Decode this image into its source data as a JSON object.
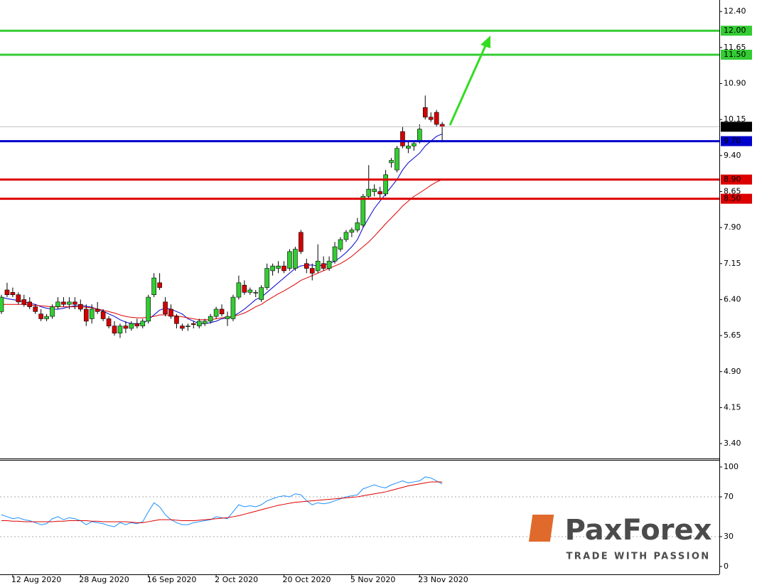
{
  "chart_data": [
    {
      "type": "candlestick",
      "categories": [
        null,
        null,
        "12 Aug 2020",
        null,
        null,
        null,
        null,
        null,
        null,
        null,
        null,
        null,
        null,
        null,
        "28 Aug 2020",
        null,
        null,
        null,
        null,
        null,
        null,
        null,
        null,
        null,
        null,
        null,
        "16 Sep 2020",
        null,
        null,
        null,
        null,
        null,
        null,
        null,
        null,
        null,
        null,
        null,
        "2 Oct 2020",
        null,
        null,
        null,
        null,
        null,
        null,
        null,
        null,
        null,
        null,
        null,
        "20 Oct 2020",
        null,
        null,
        null,
        null,
        null,
        null,
        null,
        null,
        null,
        null,
        null,
        "5 Nov 2020",
        null,
        null,
        null,
        null,
        null,
        null,
        null,
        null,
        null,
        null,
        null,
        "23 Nov 2020",
        null,
        null,
        null,
        null
      ],
      "open": [
        6.15,
        6.6,
        6.55,
        6.5,
        6.4,
        6.35,
        6.25,
        6.1,
        6.0,
        6.05,
        6.25,
        6.35,
        6.3,
        6.35,
        6.3,
        6.2,
        6.0,
        6.2,
        6.15,
        6.0,
        5.85,
        5.7,
        5.85,
        5.8,
        5.9,
        5.85,
        5.95,
        6.5,
        6.75,
        6.35,
        6.2,
        6.05,
        5.85,
        5.85,
        5.9,
        5.85,
        5.9,
        5.95,
        6.05,
        6.2,
        6.0,
        6.0,
        6.45,
        6.7,
        6.55,
        6.55,
        6.4,
        6.65,
        7.0,
        7.05,
        7.1,
        7.05,
        7.05,
        7.8,
        7.15,
        7.05,
        7.0,
        7.15,
        7.05,
        7.2,
        7.45,
        7.65,
        7.8,
        7.85,
        7.95,
        8.55,
        8.65,
        8.65,
        8.6,
        9.25,
        9.1,
        9.9,
        9.55,
        9.6,
        9.7,
        10.4,
        10.2,
        10.3,
        10.05
      ],
      "high": [
        6.5,
        6.75,
        6.65,
        6.55,
        6.5,
        6.45,
        6.3,
        6.2,
        6.1,
        6.3,
        6.45,
        6.45,
        6.45,
        6.45,
        6.4,
        6.3,
        6.3,
        6.35,
        6.2,
        6.05,
        5.95,
        5.9,
        5.95,
        5.95,
        6.0,
        6.0,
        6.5,
        6.95,
        6.95,
        6.45,
        6.3,
        6.1,
        5.9,
        5.9,
        5.95,
        6.0,
        6.0,
        6.1,
        6.25,
        6.3,
        6.15,
        6.5,
        6.9,
        6.8,
        6.65,
        6.6,
        6.7,
        7.15,
        7.15,
        7.2,
        7.2,
        7.45,
        7.5,
        7.85,
        7.25,
        7.15,
        7.55,
        7.3,
        7.3,
        7.6,
        7.7,
        7.85,
        7.9,
        8.1,
        8.6,
        9.2,
        8.8,
        8.75,
        9.1,
        9.35,
        9.6,
        10.0,
        9.7,
        9.7,
        10.05,
        10.65,
        10.3,
        10.35,
        10.1
      ],
      "low": [
        6.1,
        6.45,
        6.45,
        6.3,
        6.25,
        6.2,
        6.1,
        5.95,
        5.95,
        6.0,
        6.2,
        6.25,
        6.2,
        6.2,
        6.15,
        5.85,
        5.9,
        6.1,
        5.95,
        5.8,
        5.65,
        5.6,
        5.7,
        5.75,
        5.8,
        5.8,
        5.9,
        6.45,
        6.6,
        6.05,
        6.0,
        5.8,
        5.75,
        5.75,
        5.8,
        5.8,
        5.85,
        5.9,
        6.0,
        6.05,
        5.85,
        5.95,
        6.4,
        6.5,
        6.5,
        6.45,
        6.35,
        6.6,
        6.9,
        6.95,
        6.95,
        7.0,
        7.0,
        7.35,
        6.95,
        6.8,
        6.95,
        7.0,
        7.0,
        7.15,
        7.4,
        7.6,
        7.7,
        7.8,
        7.9,
        8.5,
        8.55,
        8.5,
        8.55,
        9.15,
        9.05,
        9.55,
        9.45,
        9.5,
        9.65,
        10.15,
        10.1,
        10.0,
        9.7
      ],
      "close": [
        6.45,
        6.5,
        6.5,
        6.35,
        6.3,
        6.25,
        6.15,
        6.0,
        6.05,
        6.25,
        6.35,
        6.3,
        6.35,
        6.3,
        6.2,
        5.95,
        6.2,
        6.15,
        6.0,
        5.85,
        5.7,
        5.85,
        5.8,
        5.9,
        5.85,
        5.95,
        6.45,
        6.85,
        6.65,
        6.1,
        6.05,
        5.9,
        5.8,
        5.85,
        5.88,
        5.95,
        5.95,
        6.05,
        6.2,
        6.1,
        6.05,
        6.45,
        6.75,
        6.55,
        6.6,
        6.55,
        6.65,
        7.05,
        7.1,
        7.1,
        7.0,
        7.4,
        7.45,
        7.4,
        7.05,
        6.95,
        7.2,
        7.05,
        7.2,
        7.5,
        7.65,
        7.8,
        7.85,
        8.0,
        8.55,
        8.7,
        8.7,
        8.6,
        9.0,
        9.3,
        9.55,
        9.6,
        9.6,
        9.65,
        9.95,
        10.2,
        10.15,
        10.05,
        10.0
      ],
      "up_color": "#32cd32",
      "down_color": "#d40000",
      "overlays": [
        {
          "color": "#0000cc",
          "values": [
            6.45,
            6.42,
            6.4,
            6.38,
            6.35,
            6.32,
            6.3,
            6.25,
            6.22,
            6.2,
            6.2,
            6.22,
            6.25,
            6.27,
            6.28,
            6.26,
            6.24,
            6.2,
            6.16,
            6.1,
            6.05,
            5.98,
            5.93,
            5.9,
            5.9,
            5.9,
            5.98,
            6.08,
            6.18,
            6.22,
            6.2,
            6.15,
            6.1,
            6.0,
            5.95,
            5.9,
            5.9,
            5.92,
            5.95,
            6.0,
            6.02,
            6.05,
            6.12,
            6.2,
            6.3,
            6.4,
            6.45,
            6.55,
            6.65,
            6.75,
            6.85,
            6.95,
            7.05,
            7.1,
            7.12,
            7.12,
            7.1,
            7.12,
            7.15,
            7.2,
            7.28,
            7.38,
            7.5,
            7.65,
            7.9,
            8.1,
            8.3,
            8.45,
            8.6,
            8.75,
            8.9,
            9.1,
            9.25,
            9.35,
            9.45,
            9.6,
            9.7,
            9.8,
            9.85
          ]
        },
        {
          "color": "#dd0000",
          "values": [
            6.3,
            6.3,
            6.3,
            6.3,
            6.3,
            6.28,
            6.28,
            6.27,
            6.26,
            6.25,
            6.25,
            6.25,
            6.25,
            6.25,
            6.25,
            6.24,
            6.23,
            6.2,
            6.18,
            6.15,
            6.12,
            6.08,
            6.05,
            6.03,
            6.02,
            6.02,
            6.03,
            6.05,
            6.08,
            6.08,
            6.07,
            6.06,
            6.04,
            6.02,
            6.0,
            5.98,
            5.98,
            5.98,
            6.0,
            6.02,
            6.03,
            6.05,
            6.08,
            6.12,
            6.18,
            6.25,
            6.3,
            6.38,
            6.45,
            6.52,
            6.58,
            6.65,
            6.72,
            6.8,
            6.85,
            6.9,
            6.95,
            7.0,
            7.05,
            7.1,
            7.15,
            7.22,
            7.3,
            7.4,
            7.5,
            7.6,
            7.72,
            7.85,
            7.98,
            8.1,
            8.22,
            8.35,
            8.45,
            8.55,
            8.62,
            8.7,
            8.78,
            8.85,
            8.9
          ]
        }
      ],
      "ylim": [
        3.09,
        12.64
      ],
      "yticks": [
        {
          "value": 12.4,
          "label": "12.40"
        },
        {
          "value": 11.65,
          "label": "11.65"
        },
        {
          "value": 10.9,
          "label": "10.90"
        },
        {
          "value": 10.15,
          "label": "10.15"
        },
        {
          "value": 9.4,
          "label": "9.40"
        },
        {
          "value": 8.65,
          "label": "8.65"
        },
        {
          "value": 7.9,
          "label": "7.90"
        },
        {
          "value": 7.15,
          "label": "7.15"
        },
        {
          "value": 6.4,
          "label": "6.40"
        },
        {
          "value": 5.65,
          "label": "5.65"
        },
        {
          "value": 4.9,
          "label": "4.90"
        },
        {
          "value": 4.15,
          "label": "4.15"
        },
        {
          "value": 3.4,
          "label": "3.40"
        }
      ],
      "levels": [
        {
          "value": 12.0,
          "label": "12.00",
          "color": "#33cc33"
        },
        {
          "value": 11.5,
          "label": "11.50",
          "color": "#33cc33"
        },
        {
          "value": 10.0,
          "label": "10.00",
          "color": "#c0c0c0",
          "label_color": "#000000"
        },
        {
          "value": 9.7,
          "label": "9.70",
          "color": "#0000cc"
        },
        {
          "value": 8.9,
          "label": "8.90",
          "color": "#dd0000"
        },
        {
          "value": 8.5,
          "label": "8.50",
          "color": "#dd0000"
        }
      ]
    },
    {
      "type": "line",
      "series": [
        {
          "color": "#1e90ff",
          "values": [
            52,
            50,
            48,
            49,
            47,
            46,
            44,
            42,
            43,
            48,
            50,
            47,
            49,
            48,
            46,
            42,
            45,
            44,
            43,
            41,
            40,
            44,
            42,
            44,
            43,
            45,
            55,
            64,
            60,
            52,
            47,
            44,
            42,
            42,
            44,
            45,
            46,
            47,
            50,
            49,
            48,
            55,
            62,
            60,
            61,
            60,
            62,
            66,
            68,
            70,
            71,
            70,
            73,
            72,
            66,
            62,
            64,
            63,
            64,
            66,
            68,
            70,
            71,
            72,
            78,
            80,
            82,
            80,
            79,
            82,
            84,
            86,
            84,
            85,
            86,
            90,
            89,
            86,
            83
          ]
        },
        {
          "color": "#dd0000",
          "values": [
            46,
            46,
            45.5,
            45.5,
            45,
            45,
            45,
            45,
            45,
            45,
            45.5,
            45.5,
            46,
            46,
            46,
            46,
            45.5,
            45.5,
            45,
            45,
            45,
            45,
            45,
            44.5,
            44,
            44,
            45,
            46,
            47,
            47,
            47,
            46.5,
            46,
            46,
            46,
            46.5,
            47,
            47.5,
            48,
            48.5,
            49,
            50,
            51,
            52.5,
            54,
            55.5,
            57,
            58.5,
            60,
            61.5,
            62.5,
            63.5,
            64.5,
            65,
            65.5,
            66,
            66.5,
            67,
            67.5,
            68,
            68.5,
            69,
            69.5,
            70,
            71,
            72,
            73,
            74,
            75,
            76.5,
            78,
            79.5,
            81,
            82,
            83,
            84,
            85,
            85,
            85
          ]
        }
      ],
      "ylim": [
        -7.9,
        107.1
      ],
      "yticks": [
        0,
        30,
        70,
        100
      ],
      "reference_lines": [
        30,
        70
      ]
    }
  ],
  "logo": {
    "name": "PaxForex",
    "tagline": "TRADE WITH PASSION"
  }
}
